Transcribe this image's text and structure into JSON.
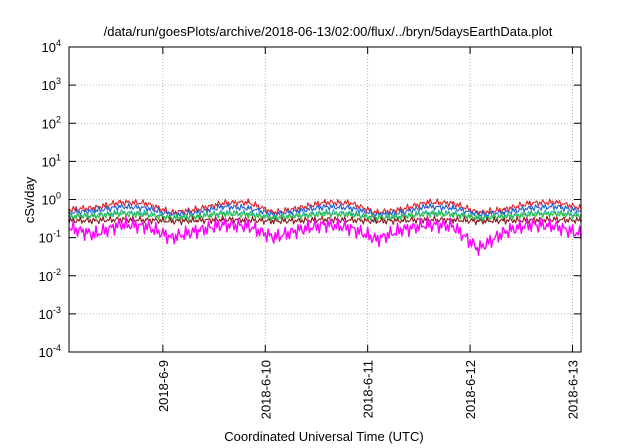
{
  "chart_data": {
    "type": "line",
    "title": "/data/run/goesPlots/archive/2018-06-13/02:00/flux/../bryn/5daysEarthData.plot",
    "xlabel": "Coordinated Universal Time (UTC)",
    "ylabel": "cSv/day",
    "yscale": "log",
    "ylim": [
      0.0001,
      10000
    ],
    "xlim": [
      "2018-06-08 02:00",
      "2018-06-13 02:00"
    ],
    "grid": true,
    "legend": "none",
    "y_ticks": [
      {
        "base": "10",
        "exp": "-4",
        "value": 0.0001
      },
      {
        "base": "10",
        "exp": "-3",
        "value": 0.001
      },
      {
        "base": "10",
        "exp": "-2",
        "value": 0.01
      },
      {
        "base": "10",
        "exp": "-1",
        "value": 0.1
      },
      {
        "base": "10",
        "exp": "0",
        "value": 1
      },
      {
        "base": "10",
        "exp": "1",
        "value": 10
      },
      {
        "base": "10",
        "exp": "2",
        "value": 100
      },
      {
        "base": "10",
        "exp": "3",
        "value": 1000
      },
      {
        "base": "10",
        "exp": "4",
        "value": 10000
      }
    ],
    "x_ticks": [
      {
        "label": "2018-6-9",
        "value": "2018-06-09 00:00"
      },
      {
        "label": "2018-6-10",
        "value": "2018-06-10 00:00"
      },
      {
        "label": "2018-6-11",
        "value": "2018-06-11 00:00"
      },
      {
        "label": "2018-6-12",
        "value": "2018-06-12 00:00"
      },
      {
        "label": "2018-6-13",
        "value": "2018-06-13 00:00"
      }
    ],
    "series": [
      {
        "color": "#e0202a",
        "x": [
          "2018-06-08 02:00",
          "2018-06-08 08:00",
          "2018-06-08 14:00",
          "2018-06-08 20:00",
          "2018-06-09 02:00",
          "2018-06-09 08:00",
          "2018-06-09 14:00",
          "2018-06-09 20:00",
          "2018-06-10 02:00",
          "2018-06-10 08:00",
          "2018-06-10 14:00",
          "2018-06-10 20:00",
          "2018-06-11 02:00",
          "2018-06-11 08:00",
          "2018-06-11 14:00",
          "2018-06-11 20:00",
          "2018-06-12 02:00",
          "2018-06-12 08:00",
          "2018-06-12 14:00",
          "2018-06-12 20:00",
          "2018-06-13 02:00"
        ],
        "values": [
          0.55,
          0.6,
          0.85,
          0.8,
          0.45,
          0.55,
          0.8,
          0.85,
          0.45,
          0.6,
          0.85,
          0.8,
          0.45,
          0.55,
          0.85,
          0.8,
          0.45,
          0.55,
          0.8,
          0.85,
          0.6
        ]
      },
      {
        "color": "#2060d0",
        "x": [
          "2018-06-08 02:00",
          "2018-06-08 08:00",
          "2018-06-08 14:00",
          "2018-06-08 20:00",
          "2018-06-09 02:00",
          "2018-06-09 08:00",
          "2018-06-09 14:00",
          "2018-06-09 20:00",
          "2018-06-10 02:00",
          "2018-06-10 08:00",
          "2018-06-10 14:00",
          "2018-06-10 20:00",
          "2018-06-11 02:00",
          "2018-06-11 08:00",
          "2018-06-11 14:00",
          "2018-06-11 20:00",
          "2018-06-12 02:00",
          "2018-06-12 08:00",
          "2018-06-12 14:00",
          "2018-06-12 20:00",
          "2018-06-13 02:00"
        ],
        "values": [
          0.45,
          0.5,
          0.65,
          0.6,
          0.4,
          0.45,
          0.65,
          0.6,
          0.4,
          0.5,
          0.65,
          0.6,
          0.4,
          0.45,
          0.65,
          0.6,
          0.4,
          0.45,
          0.6,
          0.65,
          0.5
        ]
      },
      {
        "color": "#20b0c0",
        "x": [
          "2018-06-08 02:00",
          "2018-06-08 08:00",
          "2018-06-08 14:00",
          "2018-06-08 20:00",
          "2018-06-09 02:00",
          "2018-06-09 08:00",
          "2018-06-09 14:00",
          "2018-06-09 20:00",
          "2018-06-10 02:00",
          "2018-06-10 08:00",
          "2018-06-10 14:00",
          "2018-06-10 20:00",
          "2018-06-11 02:00",
          "2018-06-11 08:00",
          "2018-06-11 14:00",
          "2018-06-11 20:00",
          "2018-06-12 02:00",
          "2018-06-12 08:00",
          "2018-06-12 14:00",
          "2018-06-12 20:00",
          "2018-06-13 02:00"
        ],
        "values": [
          0.35,
          0.38,
          0.45,
          0.43,
          0.32,
          0.35,
          0.45,
          0.43,
          0.32,
          0.38,
          0.45,
          0.43,
          0.32,
          0.35,
          0.45,
          0.43,
          0.32,
          0.35,
          0.43,
          0.45,
          0.38
        ]
      },
      {
        "color": "#30c040",
        "x": [
          "2018-06-08 02:00",
          "2018-06-08 08:00",
          "2018-06-08 14:00",
          "2018-06-08 20:00",
          "2018-06-09 02:00",
          "2018-06-09 08:00",
          "2018-06-09 14:00",
          "2018-06-09 20:00",
          "2018-06-10 02:00",
          "2018-06-10 08:00",
          "2018-06-10 14:00",
          "2018-06-10 20:00",
          "2018-06-11 02:00",
          "2018-06-11 08:00",
          "2018-06-11 14:00",
          "2018-06-11 20:00",
          "2018-06-12 02:00",
          "2018-06-12 08:00",
          "2018-06-12 14:00",
          "2018-06-12 20:00",
          "2018-06-13 02:00"
        ],
        "values": [
          0.36,
          0.37,
          0.42,
          0.4,
          0.33,
          0.36,
          0.42,
          0.4,
          0.33,
          0.37,
          0.42,
          0.4,
          0.33,
          0.36,
          0.42,
          0.4,
          0.33,
          0.36,
          0.4,
          0.42,
          0.37
        ]
      },
      {
        "color": "#8b1a1a",
        "x": [
          "2018-06-08 02:00",
          "2018-06-08 08:00",
          "2018-06-08 14:00",
          "2018-06-08 20:00",
          "2018-06-09 02:00",
          "2018-06-09 08:00",
          "2018-06-09 14:00",
          "2018-06-09 20:00",
          "2018-06-10 02:00",
          "2018-06-10 08:00",
          "2018-06-10 14:00",
          "2018-06-10 20:00",
          "2018-06-11 02:00",
          "2018-06-11 08:00",
          "2018-06-11 14:00",
          "2018-06-11 20:00",
          "2018-06-12 02:00",
          "2018-06-12 08:00",
          "2018-06-12 14:00",
          "2018-06-12 20:00",
          "2018-06-13 02:00"
        ],
        "values": [
          0.28,
          0.28,
          0.3,
          0.29,
          0.27,
          0.28,
          0.3,
          0.29,
          0.27,
          0.28,
          0.3,
          0.29,
          0.27,
          0.28,
          0.3,
          0.29,
          0.27,
          0.28,
          0.29,
          0.3,
          0.28
        ]
      },
      {
        "color": "#ff00ff",
        "x": [
          "2018-06-08 02:00",
          "2018-06-08 08:00",
          "2018-06-08 14:00",
          "2018-06-08 20:00",
          "2018-06-09 02:00",
          "2018-06-09 08:00",
          "2018-06-09 14:00",
          "2018-06-09 20:00",
          "2018-06-10 02:00",
          "2018-06-10 08:00",
          "2018-06-10 14:00",
          "2018-06-10 20:00",
          "2018-06-11 02:00",
          "2018-06-11 08:00",
          "2018-06-11 14:00",
          "2018-06-11 20:00",
          "2018-06-12 02:00",
          "2018-06-12 08:00",
          "2018-06-12 14:00",
          "2018-06-12 20:00",
          "2018-06-13 02:00"
        ],
        "values": [
          0.18,
          0.12,
          0.22,
          0.2,
          0.1,
          0.15,
          0.22,
          0.2,
          0.1,
          0.16,
          0.22,
          0.18,
          0.09,
          0.16,
          0.22,
          0.2,
          0.05,
          0.14,
          0.22,
          0.2,
          0.12
        ]
      }
    ]
  }
}
